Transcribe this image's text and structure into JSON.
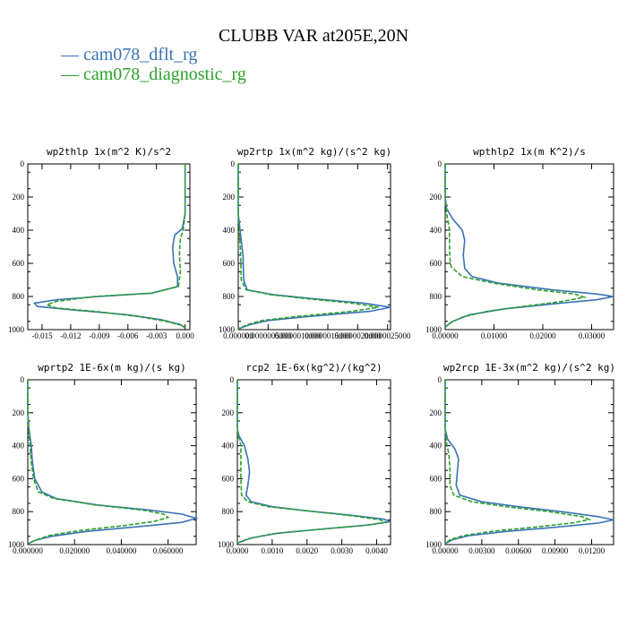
{
  "title": "CLUBB VAR at205E,20N",
  "legend": [
    {
      "label": "cam078_dflt_rg",
      "color": "#3973b5"
    },
    {
      "label": "cam078_diagnostic_rg",
      "color": "#2ca02c"
    }
  ],
  "chart_data": [
    {
      "type": "line",
      "title": "wp2thlp  1x(m^2 K)/s^2",
      "xlim": [
        -0.0165,
        0.0005
      ],
      "ylim": [
        1000,
        0
      ],
      "xticks": [
        "-0.015",
        "-0.012",
        "-0.009",
        "-0.006",
        "-0.003",
        "0.000"
      ],
      "xtick_vals": [
        -0.015,
        -0.012,
        -0.009,
        -0.006,
        -0.003,
        0.0
      ],
      "yticks": [
        "0",
        "200",
        "400",
        "600",
        "800",
        "1000"
      ],
      "series": [
        {
          "name": "cam078_dflt_rg",
          "values": [
            [
              0,
              0
            ],
            [
              0,
              100
            ],
            [
              0,
              200
            ],
            [
              0,
              300
            ],
            [
              -0.0003,
              390
            ],
            [
              -0.0011,
              430
            ],
            [
              -0.0013,
              500
            ],
            [
              -0.0012,
              600
            ],
            [
              -0.0008,
              680
            ],
            [
              -0.0008,
              740
            ],
            [
              -0.0035,
              780
            ],
            [
              -0.009,
              800
            ],
            [
              -0.0135,
              820
            ],
            [
              -0.0158,
              840
            ],
            [
              -0.0155,
              860
            ],
            [
              -0.012,
              880
            ],
            [
              -0.006,
              910
            ],
            [
              -0.0025,
              940
            ],
            [
              -0.0005,
              970
            ],
            [
              0,
              990
            ]
          ]
        },
        {
          "name": "cam078_diagnostic_rg",
          "dashed": true,
          "values": [
            [
              0,
              0
            ],
            [
              0,
              100
            ],
            [
              0,
              200
            ],
            [
              0,
              300
            ],
            [
              -0.0002,
              400
            ],
            [
              -0.0005,
              450
            ],
            [
              -0.0006,
              550
            ],
            [
              -0.0005,
              650
            ],
            [
              -0.0007,
              740
            ],
            [
              -0.0035,
              780
            ],
            [
              -0.0095,
              800
            ],
            [
              -0.0135,
              830
            ],
            [
              -0.0145,
              850
            ],
            [
              -0.0135,
              870
            ],
            [
              -0.0095,
              890
            ],
            [
              -0.005,
              920
            ],
            [
              -0.002,
              950
            ],
            [
              -0.0003,
              975
            ],
            [
              0,
              990
            ]
          ]
        }
      ]
    },
    {
      "type": "line",
      "title": "wp2rtp  1x(m^2 kg)/(s^2 kg)",
      "xlim": [
        0,
        2.55e-05
      ],
      "ylim": [
        1000,
        0
      ],
      "xticks": [
        "0.000000",
        "0.0000005000",
        "0.0000010000",
        "0.0000015000",
        "0.0000020000",
        "0.0000025000"
      ],
      "xtick_vals": [
        0,
        5e-06,
        1e-05,
        1.5e-05,
        2e-05,
        2.5e-05
      ],
      "yticks": [
        "0",
        "200",
        "400",
        "600",
        "800",
        "1000"
      ],
      "series": [
        {
          "name": "cam078_dflt_rg",
          "values": [
            [
              0,
              0
            ],
            [
              0,
              200
            ],
            [
              0,
              300
            ],
            [
              3e-07,
              400
            ],
            [
              8e-07,
              550
            ],
            [
              9e-07,
              700
            ],
            [
              1.5e-06,
              760
            ],
            [
              6e-06,
              790
            ],
            [
              1.3e-05,
              815
            ],
            [
              2.1e-05,
              840
            ],
            [
              2.55e-05,
              865
            ],
            [
              2.2e-05,
              890
            ],
            [
              1.2e-05,
              920
            ],
            [
              5e-06,
              945
            ],
            [
              2e-06,
              970
            ],
            [
              0,
              995
            ]
          ]
        },
        {
          "name": "cam078_diagnostic_rg",
          "dashed": true,
          "values": [
            [
              0,
              0
            ],
            [
              0,
              200
            ],
            [
              0,
              300
            ],
            [
              2e-07,
              400
            ],
            [
              4e-07,
              550
            ],
            [
              5e-07,
              700
            ],
            [
              1.3e-06,
              760
            ],
            [
              5.5e-06,
              790
            ],
            [
              1.2e-05,
              815
            ],
            [
              1.9e-05,
              840
            ],
            [
              2.35e-05,
              865
            ],
            [
              1.9e-05,
              890
            ],
            [
              1e-05,
              920
            ],
            [
              4e-06,
              945
            ],
            [
              1.5e-06,
              970
            ],
            [
              0,
              995
            ]
          ]
        }
      ]
    },
    {
      "type": "line",
      "title": "wpthlp2  1x(m K^2)/s",
      "xlim": [
        0,
        0.0345
      ],
      "ylim": [
        1000,
        0
      ],
      "xticks": [
        "0.00000",
        "0.01000",
        "0.02000",
        "0.03000"
      ],
      "xtick_vals": [
        0,
        0.01,
        0.02,
        0.03
      ],
      "yticks": [
        "0",
        "200",
        "400",
        "600",
        "800",
        "1000"
      ],
      "series": [
        {
          "name": "cam078_dflt_rg",
          "values": [
            [
              0,
              0
            ],
            [
              0,
              200
            ],
            [
              0.0003,
              270
            ],
            [
              0.0015,
              330
            ],
            [
              0.0035,
              400
            ],
            [
              0.004,
              460
            ],
            [
              0.0037,
              550
            ],
            [
              0.004,
              630
            ],
            [
              0.0055,
              680
            ],
            [
              0.011,
              720
            ],
            [
              0.022,
              760
            ],
            [
              0.031,
              785
            ],
            [
              0.0345,
              800
            ],
            [
              0.031,
              820
            ],
            [
              0.022,
              845
            ],
            [
              0.012,
              875
            ],
            [
              0.005,
              910
            ],
            [
              0.0015,
              950
            ],
            [
              0,
              985
            ]
          ]
        },
        {
          "name": "cam078_diagnostic_rg",
          "dashed": true,
          "values": [
            [
              0,
              0
            ],
            [
              0,
              200
            ],
            [
              0.0003,
              300
            ],
            [
              0.0008,
              380
            ],
            [
              0.0009,
              450
            ],
            [
              0.0009,
              550
            ],
            [
              0.0012,
              620
            ],
            [
              0.0035,
              680
            ],
            [
              0.01,
              720
            ],
            [
              0.019,
              760
            ],
            [
              0.0265,
              785
            ],
            [
              0.0285,
              805
            ],
            [
              0.024,
              830
            ],
            [
              0.016,
              860
            ],
            [
              0.0085,
              890
            ],
            [
              0.0035,
              925
            ],
            [
              0.001,
              960
            ],
            [
              0,
              985
            ]
          ]
        }
      ]
    },
    {
      "type": "line",
      "title": "wprtp2  1E-6x(m kg)/(s kg)",
      "xlim": [
        0,
        0.072
      ],
      "ylim": [
        1000,
        0
      ],
      "xticks": [
        "0.000000",
        "0.020000",
        "0.040000",
        "0.060000"
      ],
      "xtick_vals": [
        0,
        0.02,
        0.04,
        0.06
      ],
      "yticks": [
        "0",
        "200",
        "400",
        "600",
        "800",
        "1000"
      ],
      "series": [
        {
          "name": "cam078_dflt_rg",
          "values": [
            [
              0,
              0
            ],
            [
              0,
              200
            ],
            [
              0.0005,
              300
            ],
            [
              0.0015,
              400
            ],
            [
              0.002,
              500
            ],
            [
              0.003,
              600
            ],
            [
              0.006,
              680
            ],
            [
              0.012,
              720
            ],
            [
              0.03,
              760
            ],
            [
              0.052,
              790
            ],
            [
              0.066,
              815
            ],
            [
              0.072,
              840
            ],
            [
              0.066,
              865
            ],
            [
              0.048,
              890
            ],
            [
              0.025,
              920
            ],
            [
              0.01,
              950
            ],
            [
              0.003,
              975
            ],
            [
              0,
              995
            ]
          ]
        },
        {
          "name": "cam078_diagnostic_rg",
          "dashed": true,
          "values": [
            [
              0,
              0
            ],
            [
              0,
              200
            ],
            [
              0.0003,
              300
            ],
            [
              0.001,
              400
            ],
            [
              0.0015,
              500
            ],
            [
              0.0025,
              600
            ],
            [
              0.0045,
              680
            ],
            [
              0.011,
              720
            ],
            [
              0.029,
              760
            ],
            [
              0.049,
              790
            ],
            [
              0.058,
              815
            ],
            [
              0.06,
              835
            ],
            [
              0.054,
              860
            ],
            [
              0.041,
              885
            ],
            [
              0.022,
              915
            ],
            [
              0.009,
              945
            ],
            [
              0.003,
              975
            ],
            [
              0,
              995
            ]
          ]
        }
      ]
    },
    {
      "type": "line",
      "title": "rcp2  1E-6x(kg^2)/(kg^2)",
      "xlim": [
        0,
        0.0044
      ],
      "ylim": [
        1000,
        0
      ],
      "xticks": [
        "0.0000",
        "0.0010",
        "0.0020",
        "0.0030",
        "0.0040"
      ],
      "xtick_vals": [
        0,
        0.001,
        0.002,
        0.003,
        0.004
      ],
      "yticks": [
        "0",
        "200",
        "400",
        "600",
        "800",
        "1000"
      ],
      "series": [
        {
          "name": "cam078_dflt_rg",
          "values": [
            [
              0,
              0
            ],
            [
              0,
              200
            ],
            [
              0,
              300
            ],
            [
              5e-05,
              340
            ],
            [
              0.0002,
              400
            ],
            [
              0.0003,
              480
            ],
            [
              0.00035,
              560
            ],
            [
              0.0003,
              640
            ],
            [
              0.00025,
              700
            ],
            [
              0.0004,
              740
            ],
            [
              0.001,
              770
            ],
            [
              0.002,
              795
            ],
            [
              0.0032,
              820
            ],
            [
              0.0042,
              845
            ],
            [
              0.0044,
              860
            ],
            [
              0.0038,
              880
            ],
            [
              0.0025,
              905
            ],
            [
              0.0012,
              930
            ],
            [
              0.0004,
              960
            ],
            [
              0,
              990
            ]
          ]
        },
        {
          "name": "cam078_diagnostic_rg",
          "dashed": true,
          "values": [
            [
              0,
              0
            ],
            [
              0,
              200
            ],
            [
              0,
              300
            ],
            [
              5e-05,
              350
            ],
            [
              0.0001,
              400
            ],
            [
              0.0001,
              500
            ],
            [
              0.0001,
              600
            ],
            [
              0.00012,
              700
            ],
            [
              0.0003,
              740
            ],
            [
              0.0009,
              770
            ],
            [
              0.002,
              795
            ],
            [
              0.0033,
              825
            ],
            [
              0.0041,
              850
            ],
            [
              0.0043,
              865
            ],
            [
              0.0036,
              885
            ],
            [
              0.0022,
              910
            ],
            [
              0.001,
              935
            ],
            [
              0.0003,
              965
            ],
            [
              0,
              990
            ]
          ]
        }
      ]
    },
    {
      "type": "line",
      "title": "wp2rcp  1E-3x(m^2 kg)/(s^2 kg)",
      "xlim": [
        0,
        0.0138
      ],
      "ylim": [
        1000,
        0
      ],
      "xticks": [
        "0.00000",
        "0.00300",
        "0.00600",
        "0.00900",
        "0.01200"
      ],
      "xtick_vals": [
        0,
        0.003,
        0.006,
        0.009,
        0.012
      ],
      "yticks": [
        "0",
        "200",
        "400",
        "600",
        "800",
        "1000"
      ],
      "series": [
        {
          "name": "cam078_dflt_rg",
          "values": [
            [
              0,
              0
            ],
            [
              0,
              200
            ],
            [
              0,
              300
            ],
            [
              0.0002,
              360
            ],
            [
              0.0008,
              420
            ],
            [
              0.0011,
              480
            ],
            [
              0.001,
              560
            ],
            [
              0.0009,
              640
            ],
            [
              0.0012,
              700
            ],
            [
              0.003,
              740
            ],
            [
              0.006,
              770
            ],
            [
              0.0095,
              800
            ],
            [
              0.0125,
              830
            ],
            [
              0.0138,
              850
            ],
            [
              0.0125,
              870
            ],
            [
              0.009,
              895
            ],
            [
              0.005,
              920
            ],
            [
              0.002,
              945
            ],
            [
              0.0006,
              970
            ],
            [
              0,
              995
            ]
          ]
        },
        {
          "name": "cam078_diagnostic_rg",
          "dashed": true,
          "values": [
            [
              0,
              0
            ],
            [
              0,
              200
            ],
            [
              0,
              300
            ],
            [
              0.0001,
              380
            ],
            [
              0.0003,
              450
            ],
            [
              0.0004,
              550
            ],
            [
              0.0004,
              640
            ],
            [
              0.0007,
              700
            ],
            [
              0.0022,
              740
            ],
            [
              0.005,
              770
            ],
            [
              0.0085,
              800
            ],
            [
              0.0112,
              830
            ],
            [
              0.0118,
              848
            ],
            [
              0.0105,
              868
            ],
            [
              0.0075,
              893
            ],
            [
              0.004,
              918
            ],
            [
              0.0015,
              945
            ],
            [
              0.0004,
              970
            ],
            [
              0,
              995
            ]
          ]
        }
      ]
    }
  ]
}
